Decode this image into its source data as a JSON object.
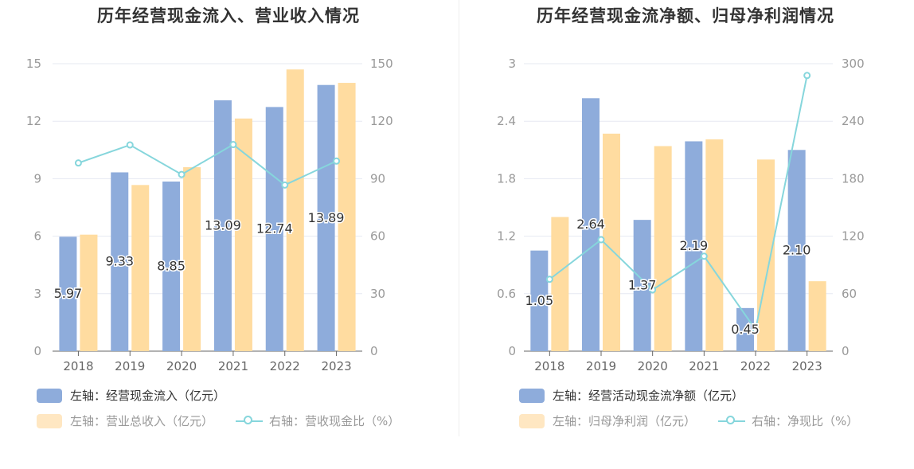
{
  "colors": {
    "bar_blue": "#8eacdb",
    "bar_yellow": "#ffdca0",
    "line_cyan": "#86d6dc",
    "legend_yellow": "#ffe7c2",
    "axis_text": "#999999",
    "grid": "#e6e9f2"
  },
  "chart_data": [
    {
      "type": "bar",
      "title": "历年经营现金流入、营业收入情况",
      "categories": [
        "2018",
        "2019",
        "2020",
        "2021",
        "2022",
        "2023"
      ],
      "y_left": {
        "ylim": [
          0,
          15
        ],
        "ticks": [
          "0",
          "3",
          "6",
          "9",
          "12",
          "15"
        ]
      },
      "y_right": {
        "ylim": [
          0,
          150
        ],
        "ticks": [
          "0",
          "30",
          "60",
          "90",
          "120",
          "150"
        ]
      },
      "grid": true,
      "legend_position": "bottom-left",
      "series": [
        {
          "name": "左轴：经营现金流入（亿元）",
          "type": "bar",
          "axis": "left",
          "values": [
            5.97,
            9.33,
            8.85,
            13.09,
            12.74,
            13.89
          ],
          "labels": [
            "5.97",
            "9.33",
            "8.85",
            "13.09",
            "12.74",
            "13.89"
          ]
        },
        {
          "name": "左轴：营业总收入（亿元）",
          "type": "bar",
          "axis": "left",
          "values": [
            6.08,
            8.67,
            9.6,
            12.14,
            14.7,
            14.0
          ]
        },
        {
          "name": "右轴：营收现金比（%）",
          "type": "line",
          "axis": "right",
          "values": [
            98.2,
            107.6,
            92.2,
            107.8,
            86.7,
            99.2
          ]
        }
      ]
    },
    {
      "type": "bar",
      "title": "历年经营现金流净额、归母净利润情况",
      "categories": [
        "2018",
        "2019",
        "2020",
        "2021",
        "2022",
        "2023"
      ],
      "y_left": {
        "ylim": [
          0,
          3
        ],
        "ticks": [
          "0",
          "0.6",
          "1.2",
          "1.8",
          "2.4",
          "3"
        ]
      },
      "y_right": {
        "ylim": [
          0,
          300
        ],
        "ticks": [
          "0",
          "60",
          "120",
          "180",
          "240",
          "300"
        ]
      },
      "grid": true,
      "legend_position": "bottom-left",
      "series": [
        {
          "name": "左轴：经营活动现金流净额（亿元）",
          "type": "bar",
          "axis": "left",
          "values": [
            1.05,
            2.64,
            1.37,
            2.19,
            0.45,
            2.1
          ],
          "labels": [
            "1.05",
            "2.64",
            "1.37",
            "2.19",
            "0.45",
            "2.10"
          ]
        },
        {
          "name": "左轴：归母净利润（亿元）",
          "type": "bar",
          "axis": "left",
          "values": [
            1.4,
            2.27,
            2.14,
            2.21,
            2.0,
            0.73
          ]
        },
        {
          "name": "右轴：净现比（%）",
          "type": "line",
          "axis": "right",
          "values": [
            75.0,
            116.3,
            64.0,
            99.1,
            22.5,
            287.7
          ]
        }
      ]
    }
  ]
}
